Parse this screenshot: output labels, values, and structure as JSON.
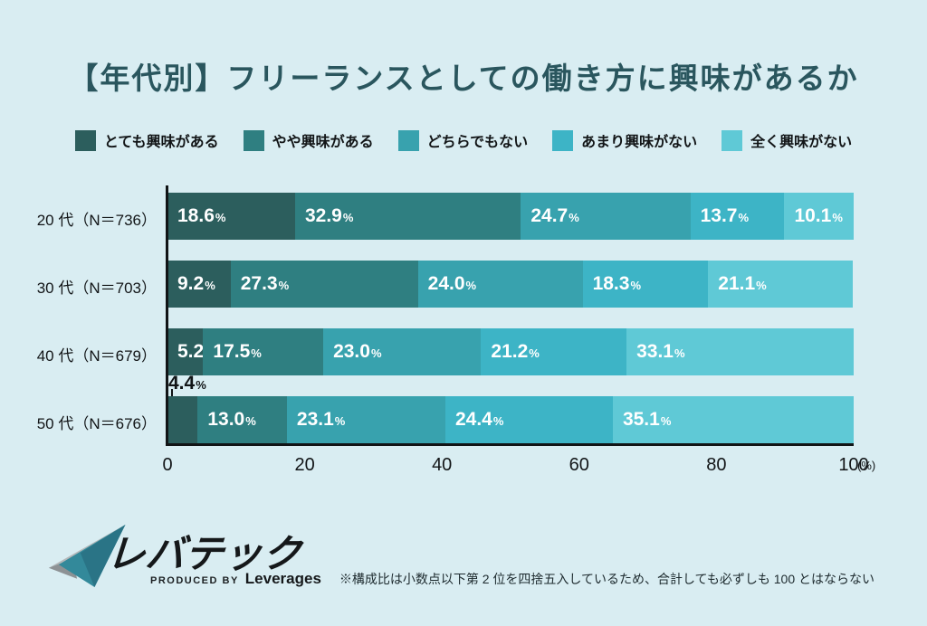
{
  "title": "【年代別】フリーランスとしての働き方に興味があるか",
  "footnote": "※構成比は小数点以下第 2 位を四捨五入しているため、合計しても必ずしも 100 とはならない",
  "logo": {
    "name": "レバテック",
    "byline_prefix": "PRODUCED BY",
    "byline_company": "Leverages"
  },
  "colors": {
    "background": "#d9edf2",
    "title": "#2a565e",
    "axis": "#111416",
    "value_label": "#ffffff",
    "series": [
      "#2c5e5d",
      "#2f7f81",
      "#38a2ae",
      "#3db4c6",
      "#5fc9d6"
    ]
  },
  "chart_data": {
    "type": "bar",
    "orientation": "horizontal",
    "stacked": true,
    "unit": "%",
    "title": "【年代別】フリーランスとしての働き方に興味があるか",
    "categories": [
      "20 代（N＝736）",
      "30 代（N＝703）",
      "40 代（N＝679）",
      "50 代（N＝676）"
    ],
    "series": [
      {
        "name": "とても興味がある",
        "values": [
          18.6,
          9.2,
          5.2,
          4.4
        ]
      },
      {
        "name": "やや興味がある",
        "values": [
          32.9,
          27.3,
          17.5,
          13.0
        ]
      },
      {
        "name": "どちらでもない",
        "values": [
          24.7,
          24.0,
          23.0,
          23.1
        ]
      },
      {
        "name": "あまり興味がない",
        "values": [
          13.7,
          18.3,
          21.2,
          24.4
        ]
      },
      {
        "name": "全く興味がない",
        "values": [
          10.1,
          21.1,
          33.1,
          35.1
        ]
      }
    ],
    "xlim": [
      0,
      100
    ],
    "x_ticks": [
      0,
      20,
      40,
      60,
      80,
      100
    ],
    "x_axis_unit_label": "(%)",
    "legend_position": "top",
    "grid": false
  }
}
